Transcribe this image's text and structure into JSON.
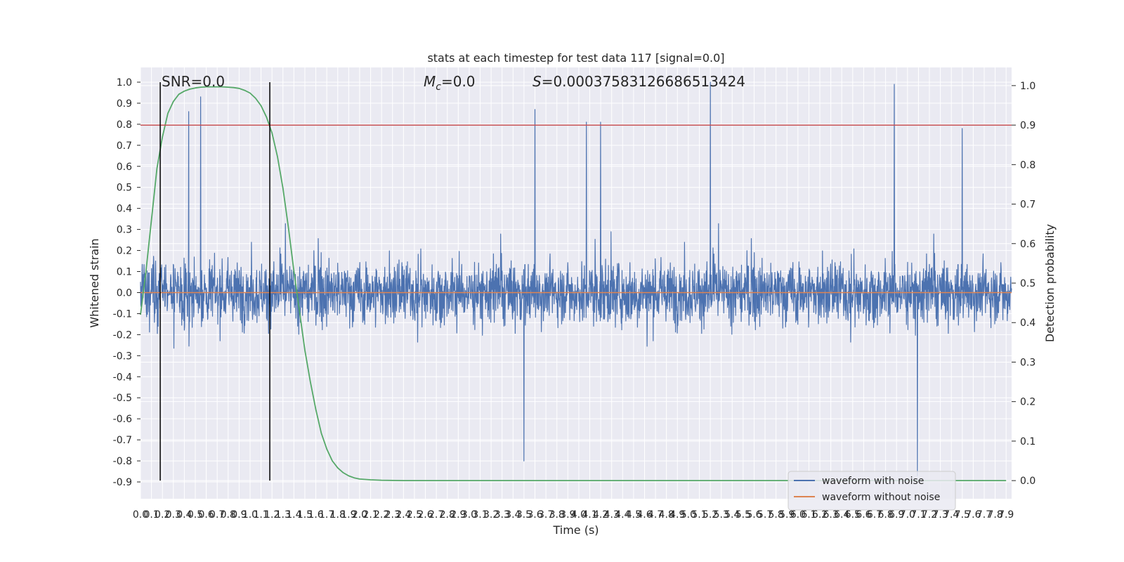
{
  "chart_data": {
    "type": "line",
    "title": "stats at each timestep for test data 117 [signal=0.0]",
    "xlabel": "Time (s)",
    "ylabel": "Whitened strain",
    "y2label": "Detection probability",
    "annotations": {
      "snr": "SNR=0.0",
      "mc_symbol": "M",
      "mc_sub": "c",
      "mc_value": "=0.0",
      "s_symbol": "S",
      "s_value": "=0.00037583126686513424"
    },
    "xlim": [
      0.0,
      7.95
    ],
    "ylim": [
      -0.98,
      1.07
    ],
    "y2lim": [
      -0.046,
      1.046
    ],
    "x_ticks": [
      0.0,
      0.1,
      0.2,
      0.3,
      0.4,
      0.5,
      0.6,
      0.7,
      0.8,
      0.9,
      1.0,
      1.1,
      1.2,
      1.3,
      1.4,
      1.5,
      1.6,
      1.7,
      1.8,
      1.9,
      2.0,
      2.1,
      2.2,
      2.3,
      2.4,
      2.5,
      2.6,
      2.7,
      2.8,
      2.9,
      3.0,
      3.1,
      3.2,
      3.3,
      3.4,
      3.5,
      3.6,
      3.7,
      3.8,
      3.9,
      4.0,
      4.1,
      4.2,
      4.3,
      4.4,
      4.5,
      4.6,
      4.7,
      4.8,
      4.9,
      5.0,
      5.1,
      5.2,
      5.3,
      5.4,
      5.5,
      5.6,
      5.7,
      5.8,
      5.9,
      6.0,
      6.1,
      6.2,
      6.3,
      6.4,
      6.5,
      6.6,
      6.7,
      6.8,
      6.9,
      7.0,
      7.1,
      7.2,
      7.3,
      7.4,
      7.5,
      7.6,
      7.7,
      7.8,
      7.9
    ],
    "y_ticks": [
      -0.9,
      -0.8,
      -0.7,
      -0.6,
      -0.5,
      -0.4,
      -0.3,
      -0.2,
      -0.1,
      0.0,
      0.1,
      0.2,
      0.3,
      0.4,
      0.5,
      0.6,
      0.7,
      0.8,
      0.9,
      1.0
    ],
    "y2_ticks": [
      0.0,
      0.1,
      0.2,
      0.3,
      0.4,
      0.5,
      0.6,
      0.7,
      0.8,
      0.9,
      1.0
    ],
    "legend": {
      "placement": "lower-right",
      "entries": [
        "waveform with noise",
        "waveform without noise"
      ]
    },
    "grid": true,
    "colors": {
      "noisy": "#4c72b0",
      "clean": "#dd8452",
      "probability": "#55a868",
      "threshold": "#c44e52",
      "markers": "#000000",
      "background": "#eaeaf2",
      "grid": "#ffffff"
    },
    "threshold_probability": 0.9,
    "marker_times": [
      0.18,
      1.18
    ],
    "series": [
      {
        "name": "waveform with noise",
        "kind": "noise",
        "approx_range": [
          -0.87,
          1.0
        ],
        "sample_rate": 2048,
        "notable_peaks": [
          [
            0.44,
            0.86
          ],
          [
            0.55,
            0.93
          ],
          [
            3.6,
            0.87
          ],
          [
            4.07,
            0.81
          ],
          [
            4.2,
            0.81
          ],
          [
            5.2,
            1.0
          ],
          [
            6.88,
            0.99
          ],
          [
            7.5,
            0.78
          ],
          [
            7.09,
            -0.87
          ],
          [
            3.5,
            -0.8
          ]
        ]
      },
      {
        "name": "waveform without noise",
        "x": [
          0.0,
          7.95
        ],
        "y": [
          0.0,
          0.0
        ]
      },
      {
        "kind": "detection-probability",
        "x": [
          0.0,
          0.05,
          0.1,
          0.15,
          0.2,
          0.25,
          0.3,
          0.35,
          0.4,
          0.45,
          0.5,
          0.55,
          0.6,
          0.65,
          0.7,
          0.75,
          0.8,
          0.85,
          0.9,
          0.95,
          1.0,
          1.05,
          1.1,
          1.15,
          1.2,
          1.25,
          1.3,
          1.35,
          1.4,
          1.45,
          1.5,
          1.55,
          1.6,
          1.65,
          1.7,
          1.75,
          1.8,
          1.85,
          1.9,
          1.95,
          2.0,
          2.1,
          2.2,
          2.4,
          2.6,
          3.0,
          4.0,
          5.0,
          6.0,
          7.0,
          7.9
        ],
        "y": [
          0.42,
          0.53,
          0.66,
          0.79,
          0.87,
          0.93,
          0.96,
          0.978,
          0.986,
          0.991,
          0.994,
          0.996,
          0.997,
          0.997,
          0.997,
          0.997,
          0.996,
          0.995,
          0.993,
          0.988,
          0.981,
          0.968,
          0.949,
          0.92,
          0.88,
          0.82,
          0.74,
          0.64,
          0.53,
          0.43,
          0.33,
          0.25,
          0.18,
          0.12,
          0.08,
          0.05,
          0.032,
          0.02,
          0.012,
          0.007,
          0.004,
          0.002,
          0.001,
          0.0,
          0.0,
          0.0,
          0.0,
          0.0,
          0.0,
          0.0,
          0.0
        ]
      }
    ]
  }
}
